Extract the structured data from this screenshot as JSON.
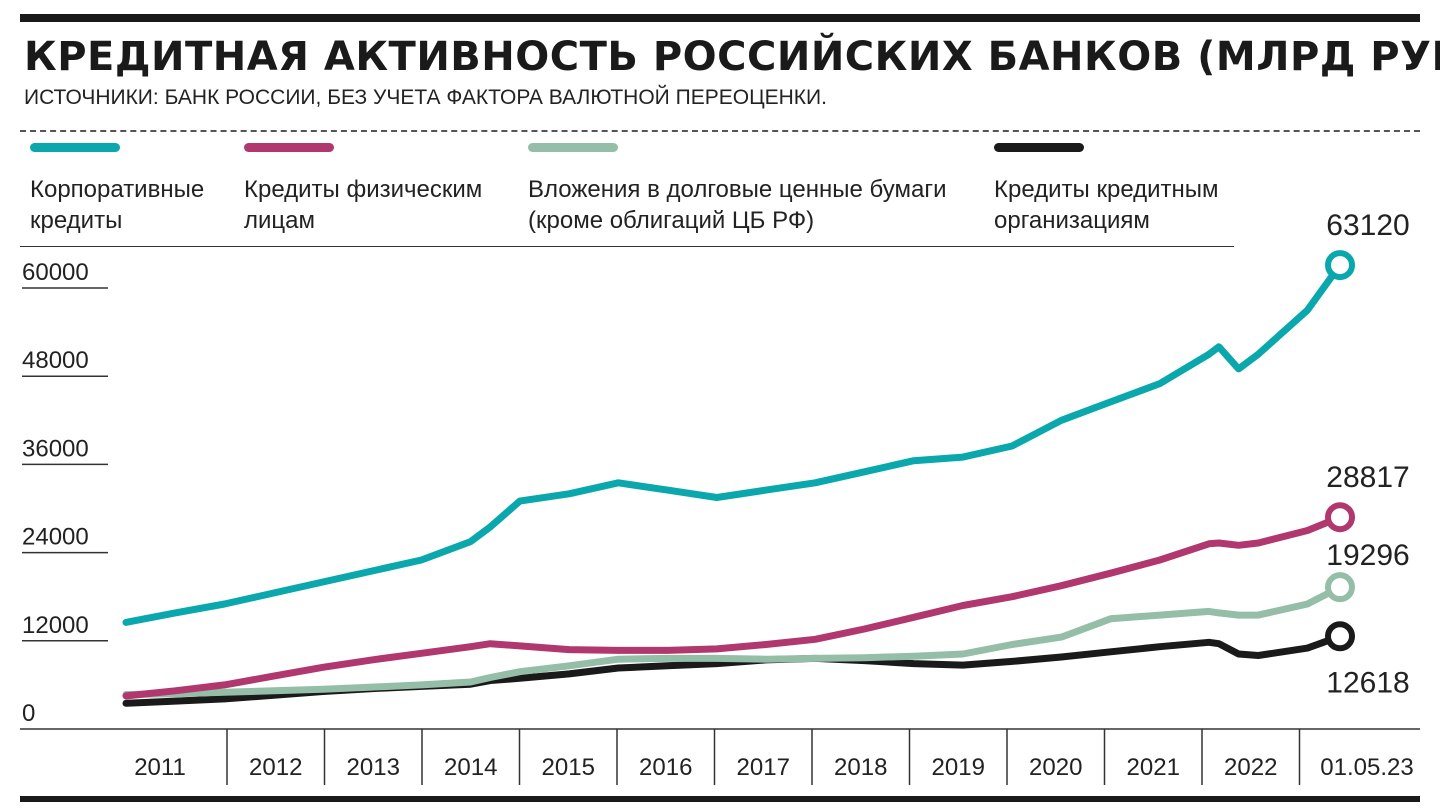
{
  "title": "КРЕДИТНАЯ АКТИВНОСТЬ РОССИЙСКИХ БАНКОВ (МЛРД РУБ.)",
  "subtitle": "ИСТОЧНИКИ: БАНК РОССИИ, БЕЗ УЧЕТА ФАКТОРА ВАЛЮТНОЙ ПЕРЕОЦЕНКИ.",
  "legend": [
    {
      "line1": "Корпоративные",
      "line2": "кредиты",
      "color": "#0aa7ad"
    },
    {
      "line1": "Кредиты физическим",
      "line2": "лицам",
      "color": "#b0386f"
    },
    {
      "line1": "Вложения в долговые ценные бумаги",
      "line2": "(кроме облигаций ЦБ РФ)",
      "color": "#95bea8"
    },
    {
      "line1": "Кредиты кредитным",
      "line2": "организациям",
      "color": "#1a1a1a"
    }
  ],
  "chart_data": {
    "type": "line",
    "ylim": [
      0,
      63120
    ],
    "y_ticks": [
      {
        "value": 0,
        "label": "0"
      },
      {
        "value": 12000,
        "label": "12000"
      },
      {
        "value": 24000,
        "label": "24000"
      },
      {
        "value": 36000,
        "label": "36000"
      },
      {
        "value": 48000,
        "label": "48000"
      },
      {
        "value": 60000,
        "label": "60000"
      }
    ],
    "x_labels": [
      "2011",
      "2012",
      "2013",
      "2014",
      "2015",
      "2016",
      "2017",
      "2018",
      "2019",
      "2020",
      "2021",
      "2022",
      "01.05.23"
    ],
    "x": [
      2011.0,
      2011.5,
      2012.0,
      2012.5,
      2013.0,
      2013.5,
      2014.0,
      2014.5,
      2014.7,
      2015.0,
      2015.5,
      2016.0,
      2016.5,
      2017.0,
      2017.5,
      2018.0,
      2018.5,
      2019.0,
      2019.5,
      2020.0,
      2020.5,
      2021.0,
      2021.5,
      2022.0,
      2022.1,
      2022.3,
      2022.5,
      2023.0,
      2023.33
    ],
    "series": [
      {
        "key": "corporate",
        "color": "#0aa7ad",
        "end_label": "63120",
        "values": [
          14500,
          15800,
          17000,
          18500,
          20000,
          21500,
          23000,
          25500,
          27500,
          31000,
          32000,
          33500,
          32500,
          31500,
          32500,
          33500,
          35000,
          36500,
          37000,
          38500,
          42000,
          44500,
          47000,
          51000,
          52000,
          49000,
          51000,
          57000,
          63120
        ]
      },
      {
        "key": "retail",
        "color": "#b0386f",
        "end_label": "28817",
        "values": [
          4500,
          5200,
          6000,
          7200,
          8400,
          9400,
          10300,
          11200,
          11600,
          11300,
          10800,
          10700,
          10700,
          10900,
          11500,
          12200,
          13600,
          15200,
          16800,
          18000,
          19500,
          21200,
          23000,
          25200,
          25300,
          25000,
          25300,
          27000,
          28817
        ]
      },
      {
        "key": "securities",
        "color": "#95bea8",
        "end_label": "19296",
        "values": [
          4700,
          4800,
          5000,
          5200,
          5400,
          5700,
          6000,
          6400,
          7000,
          7800,
          8600,
          9500,
          9600,
          9600,
          9500,
          9600,
          9700,
          9900,
          10200,
          11500,
          12500,
          15000,
          15500,
          16000,
          15800,
          15500,
          15500,
          17000,
          19296
        ]
      },
      {
        "key": "interbank",
        "color": "#1a1a1a",
        "end_label": "12618",
        "values": [
          3500,
          3800,
          4100,
          4600,
          5100,
          5500,
          5800,
          6100,
          6600,
          6900,
          7500,
          8300,
          8600,
          8900,
          9400,
          9600,
          9300,
          8900,
          8700,
          9200,
          9800,
          10500,
          11200,
          11800,
          11600,
          10200,
          10000,
          11000,
          12618
        ]
      }
    ]
  }
}
